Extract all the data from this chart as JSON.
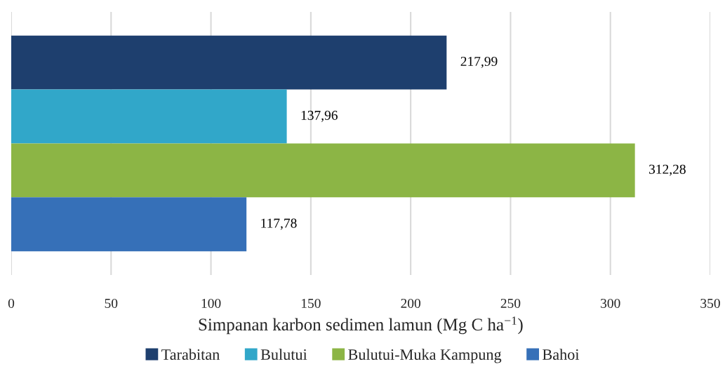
{
  "chart_data": {
    "type": "bar",
    "orientation": "horizontal",
    "categories": [
      null
    ],
    "xlabel": "Simpanan karbon sedimen lamun (Mg C ha$^{−1}$)",
    "series": [
      {
        "name": "Tarabitan",
        "color": "#1e3f6e",
        "values": [
          217.99
        ],
        "value_labels": [
          "217,99"
        ]
      },
      {
        "name": "Bulutui",
        "color": "#31a7c9",
        "values": [
          137.96
        ],
        "value_labels": [
          "137,96"
        ]
      },
      {
        "name": "Bulutui-Muka Kampung",
        "color": "#8cb545",
        "values": [
          312.28
        ],
        "value_labels": [
          "312,28"
        ]
      },
      {
        "name": "Bahoi",
        "color": "#3670b8",
        "values": [
          117.78
        ],
        "value_labels": [
          "117,78"
        ]
      }
    ],
    "xlim": [
      0,
      350
    ],
    "xticks": [
      0,
      50,
      100,
      150,
      200,
      250,
      300,
      350
    ],
    "grid": "x",
    "legend": "bottom",
    "tick_labels": "x"
  }
}
